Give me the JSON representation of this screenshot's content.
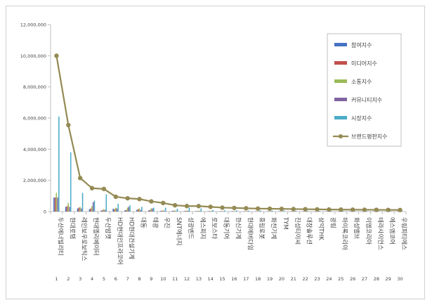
{
  "chart_data": {
    "type": "bar",
    "title": "",
    "xlabel": "",
    "ylabel": "",
    "ylim": [
      0,
      12000000
    ],
    "yticks": [
      0,
      2000000,
      4000000,
      6000000,
      8000000,
      10000000,
      12000000
    ],
    "ytick_labels": [
      "0",
      "2,000,000",
      "4,000,000",
      "6,000,000",
      "8,000,000",
      "10,000,000",
      "12,000,000"
    ],
    "grid": false,
    "legend_position": "top-right",
    "categories": [
      "두산에너빌리티",
      "현대로템",
      "레인보우로보틱스",
      "현대엘리베이터",
      "두산밥캣",
      "HD현대인프라코어",
      "HD현대건설기계",
      "대동",
      "태광",
      "우진",
      "SNT에너지",
      "성광벤드",
      "에스피지",
      "로보스타",
      "대동기어",
      "한신기계",
      "현대에버다임",
      "휴림로봇",
      "화천기계",
      "TYM",
      "진성티이씨",
      "대창솔루션",
      "삼익THK",
      "광림",
      "하이록코리아",
      "화성밸브",
      "이엠코리아",
      "테라사이언스",
      "에스엠코어",
      "우림피티에스"
    ],
    "ranks": [
      "1",
      "2",
      "3",
      "4",
      "5",
      "6",
      "7",
      "8",
      "9",
      "10",
      "11",
      "12",
      "13",
      "14",
      "15",
      "16",
      "17",
      "18",
      "19",
      "20",
      "21",
      "22",
      "23",
      "24",
      "25",
      "26",
      "27",
      "28",
      "29",
      "30"
    ],
    "series": [
      {
        "name": "참여지수",
        "color": "#4472c4",
        "kind": "bar",
        "values": [
          900000,
          300000,
          200000,
          150000,
          60000,
          180000,
          80000,
          110000,
          70000,
          40000,
          50000,
          30000,
          30000,
          25000,
          20000,
          20000,
          20000,
          20000,
          15000,
          15000,
          15000,
          10000,
          10000,
          10000,
          10000,
          10000,
          10000,
          10000,
          10000,
          10000
        ]
      },
      {
        "name": "미디어지수",
        "color": "#c0504d",
        "kind": "bar",
        "values": [
          900000,
          350000,
          250000,
          200000,
          100000,
          150000,
          100000,
          150000,
          100000,
          50000,
          40000,
          40000,
          30000,
          30000,
          25000,
          25000,
          25000,
          20000,
          20000,
          15000,
          15000,
          15000,
          10000,
          10000,
          10000,
          10000,
          10000,
          10000,
          10000,
          10000
        ]
      },
      {
        "name": "소통지수",
        "color": "#9bbb59",
        "kind": "bar",
        "values": [
          1200000,
          550000,
          300000,
          350000,
          150000,
          250000,
          250000,
          200000,
          200000,
          80000,
          80000,
          60000,
          60000,
          40000,
          30000,
          30000,
          30000,
          25000,
          25000,
          20000,
          20000,
          20000,
          15000,
          15000,
          15000,
          15000,
          10000,
          10000,
          10000,
          10000
        ]
      },
      {
        "name": "커뮤니티지수",
        "color": "#8064a2",
        "kind": "bar",
        "values": [
          900000,
          300000,
          200000,
          600000,
          100000,
          200000,
          300000,
          100000,
          200000,
          50000,
          30000,
          50000,
          30000,
          30000,
          20000,
          20000,
          20000,
          15000,
          15000,
          10000,
          10000,
          10000,
          10000,
          10000,
          10000,
          10000,
          10000,
          10000,
          10000,
          10000
        ]
      },
      {
        "name": "시장지수",
        "color": "#4bacc6",
        "kind": "bar",
        "values": [
          6100000,
          3800000,
          1200000,
          700000,
          1100000,
          500000,
          400000,
          300000,
          250000,
          250000,
          180000,
          250000,
          200000,
          100000,
          80000,
          80000,
          60000,
          80000,
          60000,
          60000,
          50000,
          50000,
          40000,
          40000,
          40000,
          30000,
          30000,
          30000,
          30000,
          30000
        ]
      },
      {
        "name": "브랜드평판지수",
        "color": "#948a54",
        "kind": "line",
        "values": [
          10000000,
          5550000,
          2150000,
          1500000,
          1450000,
          950000,
          850000,
          800000,
          650000,
          550000,
          400000,
          350000,
          350000,
          300000,
          250000,
          230000,
          210000,
          190000,
          180000,
          170000,
          160000,
          150000,
          140000,
          130000,
          125000,
          120000,
          115000,
          110000,
          105000,
          100000
        ]
      }
    ]
  }
}
